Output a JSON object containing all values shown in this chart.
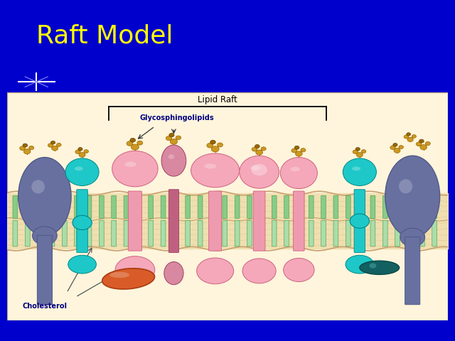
{
  "bg_color": "#0000CC",
  "title": "Raft Model",
  "title_color": "#FFFF00",
  "title_fontsize": 26,
  "diagram_bg": "#FEF5DC",
  "lipid_raft_label": "Lipid Raft",
  "glyco_label": "Glycosphingolipids",
  "cholesterol_label": "Cholesterol",
  "pink_light": "#F4A8BA",
  "pink_dark": "#E0708A",
  "pink_mid": "#EE9BB0",
  "teal_light": "#1EC8C8",
  "teal_dark": "#008888",
  "navy_blue": "#6870A0",
  "navy_dark": "#505888",
  "orange": "#D95C28",
  "green_tail": "#88CC88",
  "green_tail_dark": "#449944",
  "gold": "#CC9922",
  "gold_light": "#DDAA33",
  "dark_teal_blob": "#126060",
  "membrane_cream": "#F0DFB0",
  "membrane_tan": "#E0C898"
}
